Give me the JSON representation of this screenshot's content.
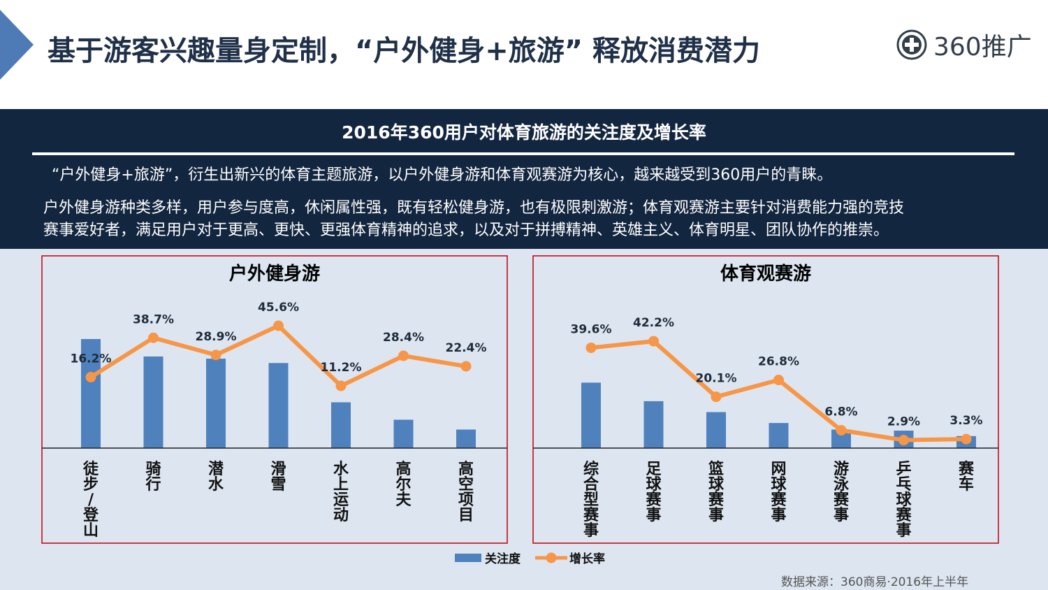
{
  "header": {
    "title": "基于游客兴趣量身定制，“户外健身+旅游” 释放消费潜力",
    "logo_text": "360推广"
  },
  "band": {
    "title": "2016年360用户对体育旅游的关注度及增长率",
    "para1": "“户外健身+旅游”，衍生出新兴的体育主题旅游，以户外健身游和体育观赛游为核心，越来越受到360用户的青睐。",
    "para2_line1": "户外健身游种类多样，用户参与度高，休闲属性强，既有轻松健身游，也有极限刺激游；体育观赛游主要针对消费能力强的竞技",
    "para2_line2": "赛事爱好者，满足用户对于更高、更快、更强体育精神的追求，以及对于拼搏精神、英雄主义、体育明星、团队协作的推崇。"
  },
  "legend": {
    "bar": "关注度",
    "line": "增长率"
  },
  "source": "数据来源：360商易·2016年上半年",
  "colors": {
    "bar": "#4f81bd",
    "line": "#f79646",
    "frame": "#c0000b",
    "band": "#13263f"
  },
  "chart_data": [
    {
      "type": "bar+line",
      "title": "户外健身游",
      "categories": [
        "徒步/登山",
        "骑行",
        "潜水",
        "滑雪",
        "水上运动",
        "高尔夫",
        "高空项目"
      ],
      "series": [
        {
          "name": "关注度",
          "type": "bar",
          "values": [
            100,
            84,
            82,
            78,
            42,
            26,
            17
          ]
        },
        {
          "name": "增长率",
          "type": "line",
          "values": [
            16.2,
            38.7,
            28.9,
            45.6,
            11.2,
            28.4,
            22.4
          ],
          "labels": [
            "16.2%",
            "38.7%",
            "28.9%",
            "45.6%",
            "11.2%",
            "28.4%",
            "22.4%"
          ]
        }
      ]
    },
    {
      "type": "bar+line",
      "title": "体育观赛游",
      "categories": [
        "综合型赛事",
        "足球赛事",
        "篮球赛事",
        "网球赛事",
        "游泳赛事",
        "乒乓球赛事",
        "赛车"
      ],
      "series": [
        {
          "name": "关注度",
          "type": "bar",
          "values": [
            60,
            43,
            33,
            23,
            17,
            16,
            11
          ]
        },
        {
          "name": "增长率",
          "type": "line",
          "values": [
            39.6,
            42.2,
            20.1,
            26.8,
            6.8,
            2.9,
            3.3
          ],
          "labels": [
            "39.6%",
            "42.2%",
            "20.1%",
            "26.8%",
            "6.8%",
            "2.9%",
            "3.3%"
          ]
        }
      ]
    }
  ]
}
